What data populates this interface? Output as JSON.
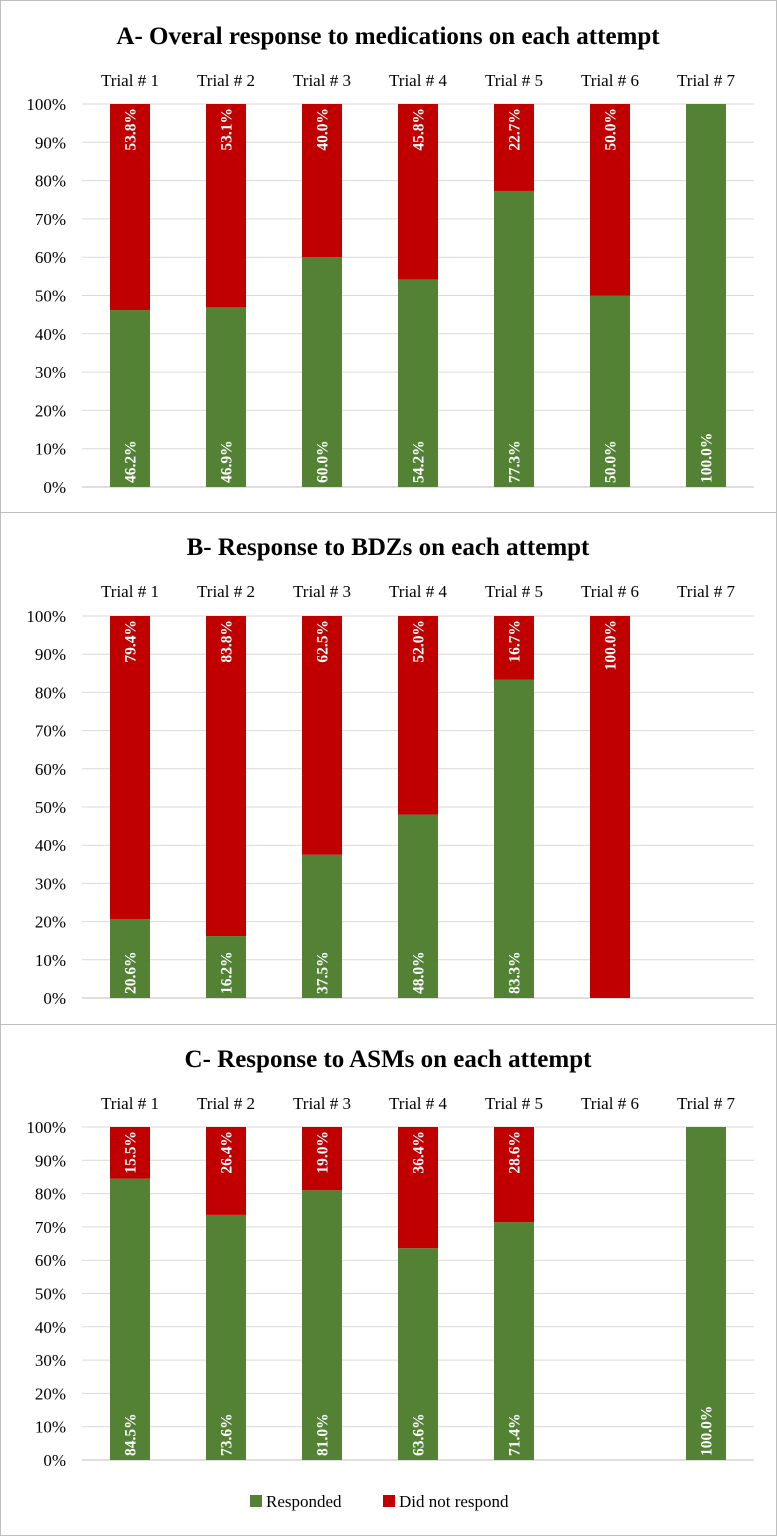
{
  "colors": {
    "responded": "#548235",
    "not_responded": "#c00000",
    "grid": "#d9d9d9",
    "axis": "#bfbfbf"
  },
  "legend": {
    "responded": "Responded",
    "not_responded": "Did not respond"
  },
  "chart_data": [
    {
      "type": "bar",
      "stacked": true,
      "title": "A- Overal response to medications on each attempt",
      "categories": [
        "Trial # 1",
        "Trial # 2",
        "Trial # 3",
        "Trial # 4",
        "Trial # 5",
        "Trial # 6",
        "Trial # 7"
      ],
      "ylim": [
        0,
        100
      ],
      "yticks": [
        "0%",
        "10%",
        "20%",
        "30%",
        "40%",
        "50%",
        "60%",
        "70%",
        "80%",
        "90%",
        "100%"
      ],
      "series": [
        {
          "name": "Responded",
          "values": [
            46.2,
            46.9,
            60.0,
            54.2,
            77.3,
            50.0,
            100.0
          ],
          "labels": [
            "46.2%",
            "46.9%",
            "60.0%",
            "54.2%",
            "77.3%",
            "50.0%",
            "100.0%"
          ]
        },
        {
          "name": "Did not respond",
          "values": [
            53.8,
            53.1,
            40.0,
            45.8,
            22.7,
            50.0,
            0
          ],
          "labels": [
            "53.8%",
            "53.1%",
            "40.0%",
            "45.8%",
            "22.7%",
            "50.0%",
            ""
          ]
        }
      ]
    },
    {
      "type": "bar",
      "stacked": true,
      "title": "B- Response to BDZs on each attempt",
      "categories": [
        "Trial # 1",
        "Trial # 2",
        "Trial # 3",
        "Trial # 4",
        "Trial # 5",
        "Trial # 6",
        "Trial # 7"
      ],
      "ylim": [
        0,
        100
      ],
      "yticks": [
        "0%",
        "10%",
        "20%",
        "30%",
        "40%",
        "50%",
        "60%",
        "70%",
        "80%",
        "90%",
        "100%"
      ],
      "series": [
        {
          "name": "Responded",
          "values": [
            20.6,
            16.2,
            37.5,
            48.0,
            83.3,
            0,
            0
          ],
          "labels": [
            "20.6%",
            "16.2%",
            "37.5%",
            "48.0%",
            "83.3%",
            "",
            ""
          ]
        },
        {
          "name": "Did not respond",
          "values": [
            79.4,
            83.8,
            62.5,
            52.0,
            16.7,
            100.0,
            0
          ],
          "labels": [
            "79.4%",
            "83.8%",
            "62.5%",
            "52.0%",
            "16.7%",
            "100.0%",
            ""
          ]
        }
      ]
    },
    {
      "type": "bar",
      "stacked": true,
      "title": "C- Response to ASMs on each attempt",
      "categories": [
        "Trial # 1",
        "Trial # 2",
        "Trial # 3",
        "Trial # 4",
        "Trial # 5",
        "Trial # 6",
        "Trial # 7"
      ],
      "ylim": [
        0,
        100
      ],
      "yticks": [
        "0%",
        "10%",
        "20%",
        "30%",
        "40%",
        "50%",
        "60%",
        "70%",
        "80%",
        "90%",
        "100%"
      ],
      "series": [
        {
          "name": "Responded",
          "values": [
            84.5,
            73.6,
            81.0,
            63.6,
            71.4,
            0,
            100.0
          ],
          "labels": [
            "84.5%",
            "73.6%",
            "81.0%",
            "63.6%",
            "71.4%",
            "",
            "100.0%"
          ]
        },
        {
          "name": "Did not respond",
          "values": [
            15.5,
            26.4,
            19.0,
            36.4,
            28.6,
            0,
            0
          ],
          "labels": [
            "15.5%",
            "26.4%",
            "19.0%",
            "36.4%",
            "28.6%",
            "",
            ""
          ]
        }
      ]
    }
  ]
}
